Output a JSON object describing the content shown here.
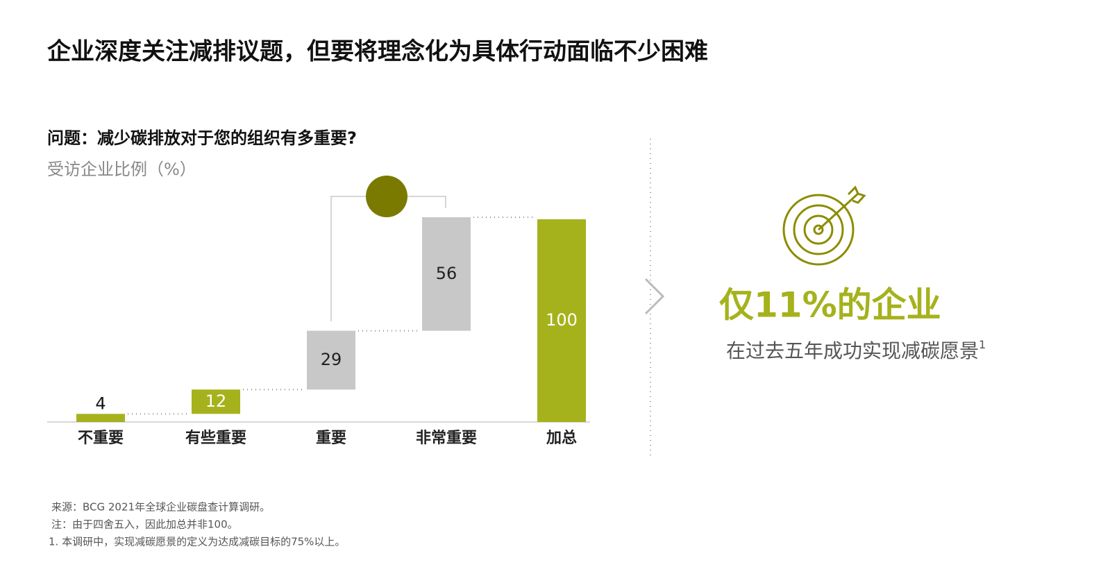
{
  "title": "企业深度关注减排议题，但要将理念化为具体行动面临不少困难",
  "chart_data": {
    "type": "waterfall",
    "title": "问题：减少碳排放对于您的组织有多重要?",
    "subtitle": "受访企业比例（%）",
    "categories": [
      "不重要",
      "有些重要",
      "重要",
      "非常重要",
      "加总"
    ],
    "values": [
      4,
      12,
      29,
      56,
      100
    ],
    "is_total": [
      false,
      false,
      false,
      false,
      true
    ],
    "colors": [
      "#a5b21c",
      "#a5b21c",
      "#c8c8c8",
      "#c8c8c8",
      "#a5b21c"
    ]
  },
  "callout": {
    "headline": "仅11%的企业",
    "text": "在过去五年成功实现减碳愿景",
    "footnote_ref": "1"
  },
  "footnotes": [
    "来源：BCG 2021年全球企业碳盘查计算调研。",
    "注：由于四舍五入，因此加总并非100。",
    "1. 本调研中，实现减碳愿景的定义为达成减碳目标的75%以上。"
  ]
}
